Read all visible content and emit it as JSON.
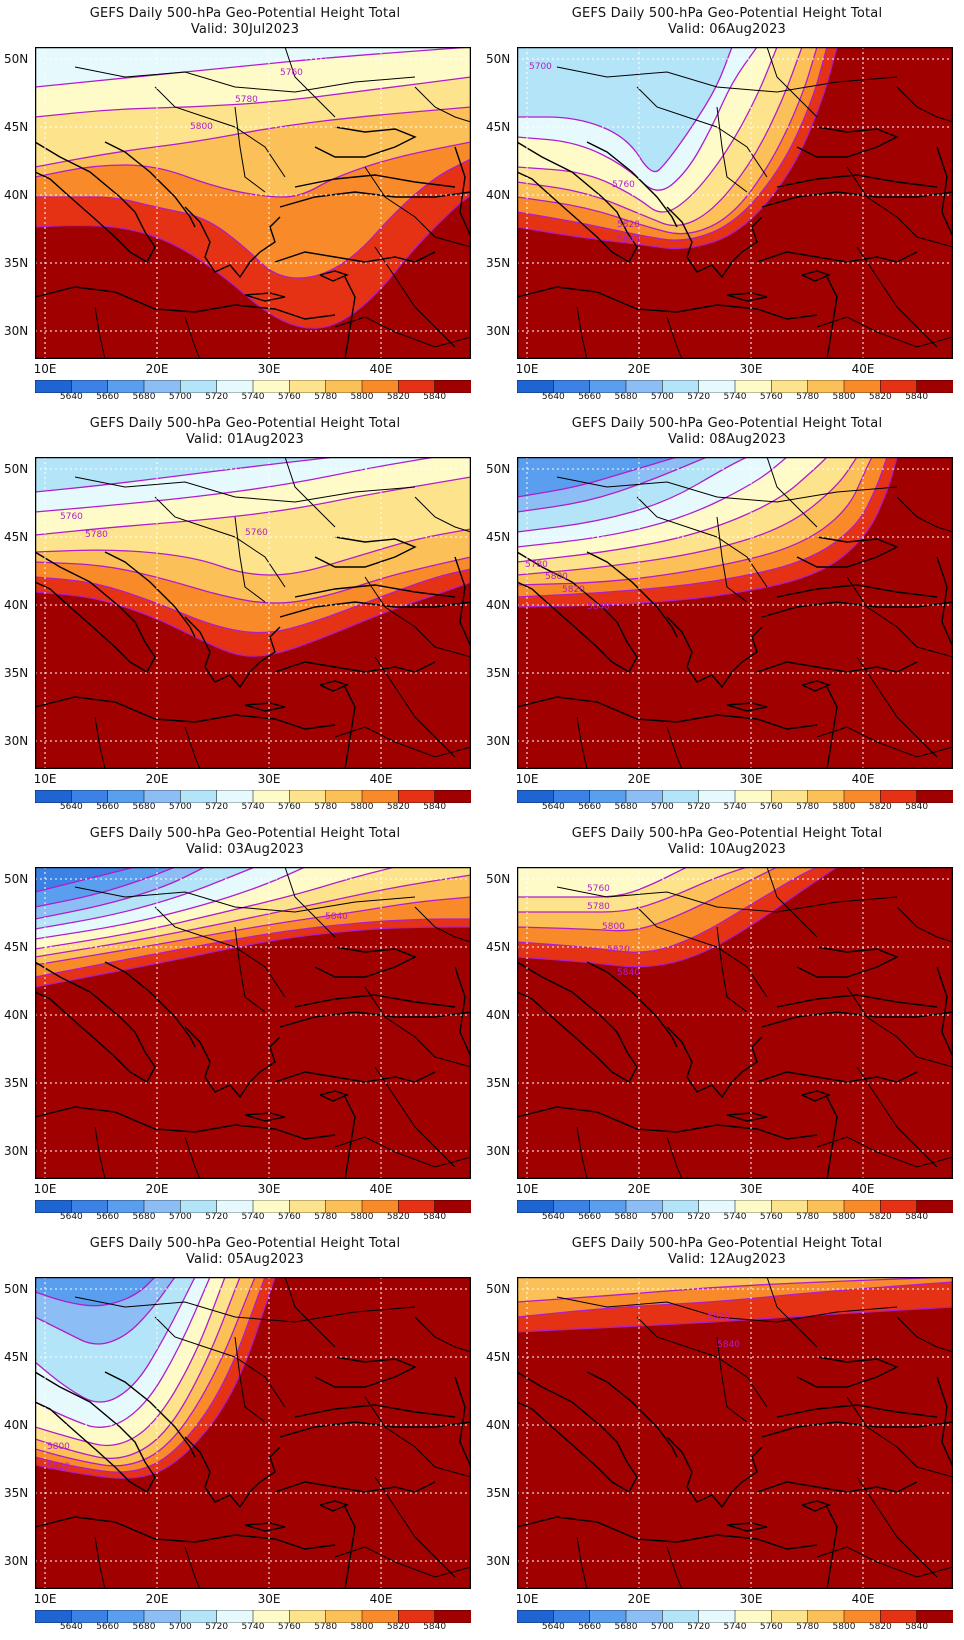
{
  "colorbar": {
    "levels": [
      "5640",
      "5660",
      "5680",
      "5700",
      "5720",
      "5740",
      "5760",
      "5780",
      "5800",
      "5820",
      "5840"
    ],
    "colors": [
      "#1e64d2",
      "#3c82e6",
      "#5a9ef0",
      "#8cbef5",
      "#b4e4f8",
      "#e6fafe",
      "#fffbc8",
      "#fde48c",
      "#fcc058",
      "#f88a2a",
      "#e63214",
      "#a00000"
    ]
  },
  "axes": {
    "lon_labels": [
      "10E",
      "20E",
      "30E",
      "40E"
    ],
    "lat_labels": [
      "50N",
      "45N",
      "40N",
      "35N",
      "30N"
    ]
  },
  "styles": {
    "contour_color": "#b01ec8",
    "coast_color": "#000000",
    "grid_color": "#ffffff"
  },
  "panels": [
    {
      "title": "GEFS Daily 500-hPa Geo-Potential Height Total",
      "valid": "Valid: 30Jul2023",
      "contour_labels": [
        "5760",
        "5780",
        "5800"
      ]
    },
    {
      "title": "GEFS Daily 500-hPa Geo-Potential Height Total",
      "valid": "Valid: 06Aug2023",
      "contour_labels": [
        "5700",
        "5760",
        "5820",
        "5840"
      ]
    },
    {
      "title": "GEFS Daily 500-hPa Geo-Potential Height Total",
      "valid": "Valid: 01Aug2023",
      "contour_labels": [
        "5760",
        "5780",
        "5760"
      ]
    },
    {
      "title": "GEFS Daily 500-hPa Geo-Potential Height Total",
      "valid": "Valid: 08Aug2023",
      "contour_labels": [
        "5780",
        "5800",
        "5820",
        "5840"
      ]
    },
    {
      "title": "GEFS Daily 500-hPa Geo-Potential Height Total",
      "valid": "Valid: 03Aug2023",
      "contour_labels": [
        "5840"
      ]
    },
    {
      "title": "GEFS Daily 500-hPa Geo-Potential Height Total",
      "valid": "Valid: 10Aug2023",
      "contour_labels": [
        "5760",
        "5780",
        "5800",
        "5820",
        "5840"
      ]
    },
    {
      "title": "GEFS Daily 500-hPa Geo-Potential Height Total",
      "valid": "Valid: 05Aug2023",
      "contour_labels": [
        "5800",
        "5820"
      ]
    },
    {
      "title": "GEFS Daily 500-hPa Geo-Potential Height Total",
      "valid": "Valid: 12Aug2023",
      "contour_labels": [
        "5820",
        "5840"
      ]
    }
  ]
}
